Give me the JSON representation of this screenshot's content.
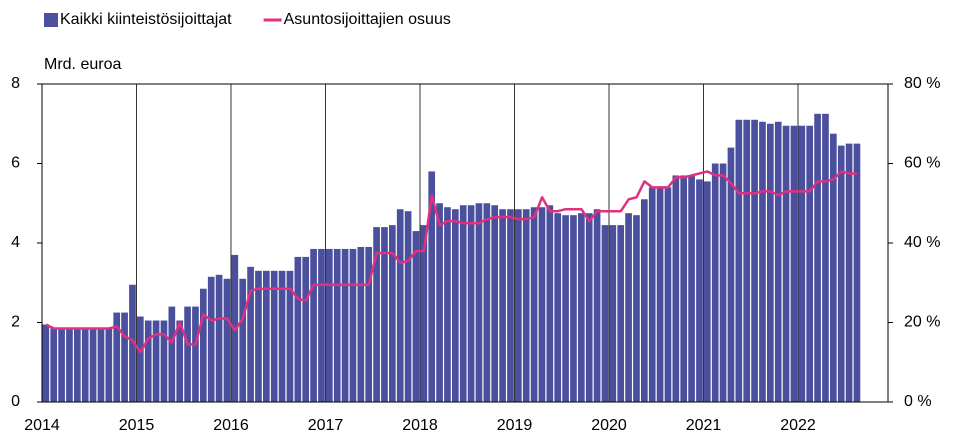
{
  "chart_data": {
    "type": "bar_line",
    "y_label": "Mrd. euroa",
    "categories": [
      "2014",
      null,
      null,
      null,
      null,
      null,
      null,
      null,
      null,
      null,
      null,
      null,
      "2015",
      null,
      null,
      null,
      null,
      null,
      null,
      null,
      null,
      null,
      null,
      null,
      "2016",
      null,
      null,
      null,
      null,
      null,
      null,
      null,
      null,
      null,
      null,
      null,
      "2017",
      null,
      null,
      null,
      null,
      null,
      null,
      null,
      null,
      null,
      null,
      null,
      "2018",
      null,
      null,
      null,
      null,
      null,
      null,
      null,
      null,
      null,
      null,
      null,
      "2019",
      null,
      null,
      null,
      null,
      null,
      null,
      null,
      null,
      null,
      null,
      null,
      "2020",
      null,
      null,
      null,
      null,
      null,
      null,
      null,
      null,
      null,
      null,
      null,
      "2021",
      null,
      null,
      null,
      null,
      null,
      null,
      null,
      null,
      null,
      null,
      null,
      "2022",
      null,
      null,
      null,
      null,
      null,
      null,
      null
    ],
    "series": [
      {
        "name": "Kaikki kiinteistösijoittajat",
        "type": "bar",
        "color": "#4a4f9e",
        "values": [
          1.95,
          1.85,
          1.85,
          1.85,
          1.85,
          1.85,
          1.85,
          1.85,
          1.85,
          2.25,
          2.25,
          2.95,
          2.15,
          2.05,
          2.05,
          2.05,
          2.4,
          2.05,
          2.4,
          2.4,
          2.85,
          3.15,
          3.2,
          3.1,
          3.7,
          3.1,
          3.4,
          3.3,
          3.3,
          3.3,
          3.3,
          3.3,
          3.65,
          3.65,
          3.85,
          3.85,
          3.85,
          3.85,
          3.85,
          3.85,
          3.9,
          3.9,
          4.4,
          4.4,
          4.45,
          4.85,
          4.8,
          4.3,
          4.45,
          5.8,
          5.0,
          4.9,
          4.85,
          4.95,
          4.95,
          5.0,
          5.0,
          4.95,
          4.85,
          4.85,
          4.85,
          4.85,
          4.9,
          4.9,
          4.95,
          4.75,
          4.7,
          4.7,
          4.75,
          4.75,
          4.85,
          4.45,
          4.45,
          4.45,
          4.75,
          4.7,
          5.1,
          5.4,
          5.4,
          5.4,
          5.7,
          5.7,
          5.7,
          5.6,
          5.55,
          6.0,
          6.0,
          6.4,
          7.1,
          7.1,
          7.1,
          7.05,
          7.0,
          7.05,
          6.95,
          6.95,
          6.95,
          6.95,
          7.25,
          7.25,
          6.75,
          6.45,
          6.5,
          6.5
        ]
      },
      {
        "name": "Asuntosijoittajien osuus",
        "type": "line",
        "axis": "y2",
        "color": "#e0307f",
        "values": [
          19.5,
          18.5,
          18.5,
          18.5,
          18.5,
          18.5,
          18.5,
          18.5,
          18.5,
          19,
          16.5,
          15.5,
          12.5,
          16,
          17,
          17,
          15,
          20,
          14.5,
          14.5,
          22,
          20.5,
          21,
          21,
          18,
          21,
          28,
          28.5,
          28.5,
          28.5,
          28.5,
          28.5,
          26,
          25.5,
          29.5,
          29.5,
          29.5,
          29.5,
          29.5,
          29.5,
          29.5,
          29.5,
          37.5,
          37.5,
          37.5,
          35,
          35.5,
          38,
          38,
          52,
          44.5,
          45.5,
          45.5,
          45,
          45,
          45,
          46,
          46.5,
          46.5,
          46.5,
          46,
          46,
          46.5,
          51.5,
          48,
          48,
          48.5,
          48.5,
          48.5,
          45.5,
          48,
          48,
          48,
          48,
          51,
          51.5,
          55.5,
          54,
          54,
          54,
          56.5,
          56.5,
          57,
          57.5,
          58,
          57,
          57,
          55,
          52.5,
          52.5,
          52.5,
          53,
          53,
          52,
          53,
          53,
          53,
          53,
          55.5,
          55.5,
          56,
          58,
          57.5,
          57.5
        ]
      }
    ],
    "ylim": [
      0,
      8
    ],
    "yticks": [
      0,
      2,
      4,
      6,
      8
    ],
    "y2lim": [
      0,
      80
    ],
    "y2ticks": [
      {
        "value": 0,
        "label": "0 %"
      },
      {
        "value": 20,
        "label": "20 %"
      },
      {
        "value": 40,
        "label": "40 %"
      },
      {
        "value": 60,
        "label": "60 %"
      },
      {
        "value": 80,
        "label": "80 %"
      }
    ],
    "legend": "top-left"
  }
}
